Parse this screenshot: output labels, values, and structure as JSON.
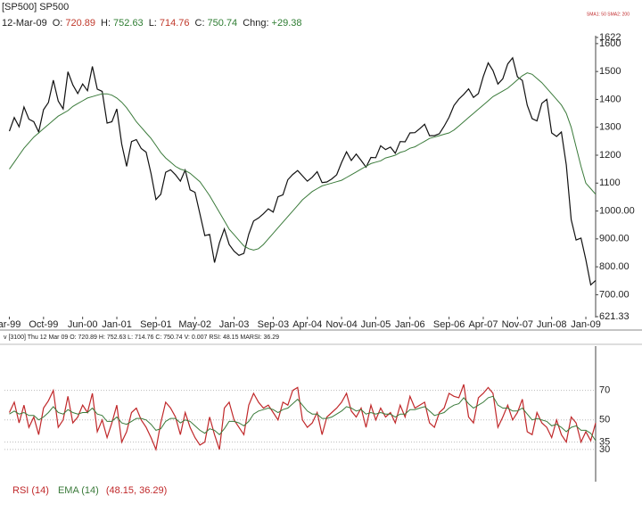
{
  "chart_data": [
    {
      "type": "line",
      "title": "[SP500] SP500",
      "date": "12-Mar-09",
      "quote": [
        {
          "label": "O:",
          "value": "720.89",
          "color": "#c0392b"
        },
        {
          "label": "H:",
          "value": "752.63",
          "color": "#2e7d32"
        },
        {
          "label": "L:",
          "value": "714.76",
          "color": "#c0392b"
        },
        {
          "label": "C:",
          "value": "750.74",
          "color": "#2e7d32"
        },
        {
          "label": "Chng:",
          "value": "+29.38",
          "color": "#2e7d32"
        }
      ],
      "indicator_note": "SMA1: 50 SMA2: 200",
      "x": [
        "1999-03",
        "1999-04",
        "1999-05",
        "1999-06",
        "1999-07",
        "1999-08",
        "1999-09",
        "1999-10",
        "1999-11",
        "1999-12",
        "2000-01",
        "2000-02",
        "2000-03",
        "2000-04",
        "2000-05",
        "2000-06",
        "2000-07",
        "2000-08",
        "2000-09",
        "2000-10",
        "2000-11",
        "2000-12",
        "2001-01",
        "2001-02",
        "2001-03",
        "2001-04",
        "2001-05",
        "2001-06",
        "2001-07",
        "2001-08",
        "2001-09",
        "2001-10",
        "2001-11",
        "2001-12",
        "2002-01",
        "2002-02",
        "2002-03",
        "2002-04",
        "2002-05",
        "2002-06",
        "2002-07",
        "2002-08",
        "2002-09",
        "2002-10",
        "2002-11",
        "2002-12",
        "2003-01",
        "2003-02",
        "2003-03",
        "2003-04",
        "2003-05",
        "2003-06",
        "2003-07",
        "2003-08",
        "2003-09",
        "2003-10",
        "2003-11",
        "2003-12",
        "2004-01",
        "2004-02",
        "2004-03",
        "2004-04",
        "2004-05",
        "2004-06",
        "2004-07",
        "2004-08",
        "2004-09",
        "2004-10",
        "2004-11",
        "2004-12",
        "2005-01",
        "2005-02",
        "2005-03",
        "2005-04",
        "2005-05",
        "2005-06",
        "2005-07",
        "2005-08",
        "2005-09",
        "2005-10",
        "2005-11",
        "2005-12",
        "2006-01",
        "2006-02",
        "2006-03",
        "2006-04",
        "2006-05",
        "2006-06",
        "2006-07",
        "2006-08",
        "2006-09",
        "2006-10",
        "2006-11",
        "2006-12",
        "2007-01",
        "2007-02",
        "2007-03",
        "2007-04",
        "2007-05",
        "2007-06",
        "2007-07",
        "2007-08",
        "2007-09",
        "2007-10",
        "2007-11",
        "2007-12",
        "2008-01",
        "2008-02",
        "2008-03",
        "2008-04",
        "2008-05",
        "2008-06",
        "2008-07",
        "2008-08",
        "2008-09",
        "2008-10",
        "2008-11",
        "2008-12",
        "2009-01",
        "2009-02",
        "2009-03"
      ],
      "series": [
        {
          "color": "#111111",
          "values": [
            1286,
            1335,
            1302,
            1373,
            1329,
            1320,
            1283,
            1363,
            1389,
            1469,
            1394,
            1366,
            1499,
            1452,
            1421,
            1455,
            1431,
            1518,
            1437,
            1429,
            1315,
            1320,
            1366,
            1240,
            1160,
            1249,
            1256,
            1224,
            1211,
            1134,
            1041,
            1060,
            1139,
            1148,
            1130,
            1107,
            1147,
            1076,
            1067,
            990,
            912,
            916,
            815,
            886,
            936,
            880,
            856,
            841,
            848,
            917,
            964,
            975,
            990,
            1008,
            996,
            1051,
            1058,
            1112,
            1131,
            1145,
            1126,
            1107,
            1121,
            1141,
            1102,
            1104,
            1115,
            1130,
            1174,
            1212,
            1181,
            1204,
            1181,
            1157,
            1192,
            1191,
            1234,
            1220,
            1229,
            1207,
            1249,
            1248,
            1280,
            1281,
            1295,
            1311,
            1270,
            1270,
            1277,
            1304,
            1336,
            1378,
            1401,
            1418,
            1438,
            1407,
            1421,
            1482,
            1531,
            1503,
            1455,
            1474,
            1527,
            1549,
            1481,
            1468,
            1379,
            1331,
            1323,
            1386,
            1400,
            1280,
            1267,
            1283,
            1165,
            969,
            896,
            903,
            826,
            735,
            751
          ]
        },
        {
          "color": "#3a7a3a",
          "values": [
            1150,
            1175,
            1200,
            1225,
            1245,
            1265,
            1280,
            1295,
            1310,
            1325,
            1340,
            1350,
            1360,
            1375,
            1385,
            1395,
            1405,
            1410,
            1415,
            1420,
            1420,
            1415,
            1405,
            1390,
            1370,
            1345,
            1320,
            1300,
            1280,
            1260,
            1235,
            1210,
            1190,
            1175,
            1160,
            1150,
            1145,
            1135,
            1120,
            1105,
            1080,
            1055,
            1025,
            995,
            965,
            935,
            915,
            895,
            875,
            865,
            860,
            865,
            880,
            900,
            920,
            940,
            960,
            980,
            1000,
            1020,
            1040,
            1055,
            1070,
            1080,
            1090,
            1095,
            1100,
            1105,
            1110,
            1120,
            1130,
            1140,
            1150,
            1160,
            1170,
            1175,
            1180,
            1190,
            1195,
            1200,
            1210,
            1215,
            1225,
            1230,
            1240,
            1250,
            1260,
            1265,
            1270,
            1275,
            1280,
            1290,
            1305,
            1320,
            1335,
            1350,
            1365,
            1380,
            1395,
            1410,
            1420,
            1430,
            1440,
            1455,
            1470,
            1485,
            1495,
            1490,
            1475,
            1460,
            1440,
            1420,
            1400,
            1380,
            1350,
            1300,
            1230,
            1160,
            1100,
            1080,
            1060
          ]
        }
      ],
      "xlim": [
        "1999-02",
        "2009-03"
      ],
      "xticks": [
        {
          "value": "1999-03",
          "label": "ar-99"
        },
        {
          "value": "1999-10",
          "label": "Oct-99"
        },
        {
          "value": "2000-06",
          "label": "Jun-00"
        },
        {
          "value": "2001-01",
          "label": "Jan-01"
        },
        {
          "value": "2001-09",
          "label": "Sep-01"
        },
        {
          "value": "2002-05",
          "label": "May-02"
        },
        {
          "value": "2003-01",
          "label": "Jan-03"
        },
        {
          "value": "2003-09",
          "label": "Sep-03"
        },
        {
          "value": "2004-04",
          "label": "Apr-04"
        },
        {
          "value": "2004-11",
          "label": "Nov-04"
        },
        {
          "value": "2005-06",
          "label": "Jun-05"
        },
        {
          "value": "2006-01",
          "label": "Jan-06"
        },
        {
          "value": "2006-09",
          "label": "Sep-06"
        },
        {
          "value": "2007-04",
          "label": "Apr-07"
        },
        {
          "value": "2007-11",
          "label": "Nov-07"
        },
        {
          "value": "2008-06",
          "label": "Jun-08"
        },
        {
          "value": "2009-01",
          "label": "Jan-09"
        }
      ],
      "ylim": [
        621.33,
        1622
      ],
      "yticks": [
        621.33,
        {
          "value": 700,
          "label": "700.00"
        },
        {
          "value": 800,
          "label": "800.00"
        },
        {
          "value": 900,
          "label": "900.00"
        },
        {
          "value": 1000,
          "label": "1000.00"
        },
        1100,
        1200,
        1300,
        1400,
        1500,
        1600,
        1622
      ]
    },
    {
      "type": "line",
      "header": "v [3100] Thu 12 Mar 09 O: 720.89 H: 752.63 L: 714.76 C: 750.74 V: 0.007 RSI: 48.15 MARSI: 36.29",
      "series": [
        {
          "name": "RSI (14)",
          "color": "#c0282a",
          "values": [
            55,
            62,
            48,
            60,
            45,
            52,
            40,
            58,
            63,
            70,
            45,
            50,
            66,
            48,
            52,
            60,
            55,
            68,
            42,
            50,
            38,
            48,
            60,
            35,
            42,
            55,
            58,
            50,
            45,
            38,
            30,
            48,
            62,
            58,
            52,
            40,
            55,
            45,
            38,
            33,
            35,
            52,
            40,
            30,
            58,
            62,
            50,
            45,
            40,
            60,
            68,
            62,
            58,
            60,
            55,
            50,
            62,
            60,
            70,
            72,
            50,
            45,
            48,
            55,
            40,
            52,
            55,
            58,
            62,
            68,
            56,
            52,
            58,
            45,
            60,
            50,
            58,
            52,
            55,
            48,
            60,
            52,
            66,
            58,
            60,
            62,
            48,
            45,
            55,
            58,
            68,
            66,
            65,
            74,
            52,
            48,
            65,
            68,
            72,
            68,
            45,
            52,
            60,
            50,
            55,
            64,
            42,
            40,
            55,
            48,
            45,
            38,
            50,
            40,
            35,
            52,
            48,
            35,
            42,
            36,
            48
          ]
        },
        {
          "name": "EMA (14)",
          "color": "#3a7a3a",
          "values": [
            54,
            56,
            54,
            55,
            53,
            53,
            50,
            52,
            55,
            59,
            55,
            54,
            57,
            55,
            54,
            55,
            55,
            58,
            54,
            53,
            49,
            49,
            52,
            48,
            47,
            49,
            51,
            51,
            50,
            47,
            43,
            44,
            49,
            51,
            51,
            48,
            50,
            49,
            46,
            43,
            41,
            44,
            43,
            40,
            44,
            49,
            49,
            48,
            46,
            49,
            54,
            56,
            57,
            58,
            57,
            55,
            57,
            58,
            61,
            64,
            60,
            56,
            54,
            54,
            51,
            51,
            52,
            54,
            56,
            59,
            58,
            56,
            57,
            54,
            55,
            54,
            55,
            54,
            54,
            52,
            54,
            54,
            57,
            57,
            58,
            59,
            56,
            53,
            54,
            55,
            58,
            60,
            61,
            65,
            61,
            58,
            60,
            62,
            65,
            66,
            60,
            58,
            58,
            56,
            56,
            58,
            54,
            50,
            51,
            50,
            49,
            46,
            47,
            45,
            42,
            45,
            46,
            43,
            43,
            41,
            36
          ]
        }
      ],
      "readout": "(48.15, 36.29)",
      "ylim": [
        10,
        100
      ],
      "yticks": [
        70,
        50,
        35,
        30
      ]
    }
  ]
}
